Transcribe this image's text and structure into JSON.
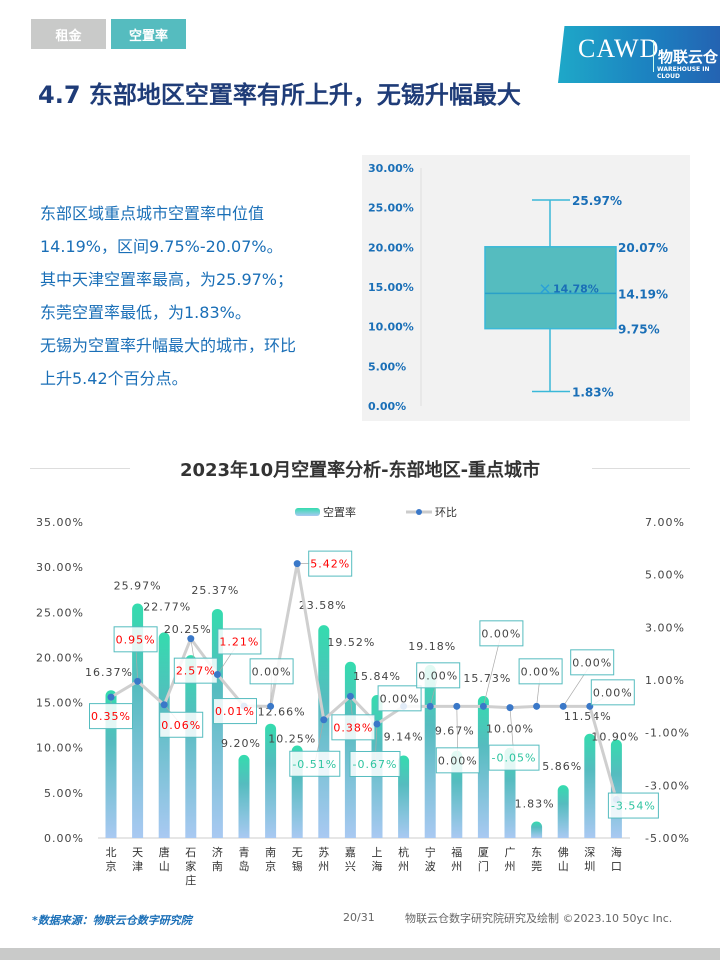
{
  "tabs": [
    {
      "label": "租金"
    },
    {
      "label": "空置率"
    }
  ],
  "logo": {
    "text": "CAWD",
    "cn": "物联云仓",
    "en": "WAREHOUSE IN CLOUD"
  },
  "title": "4.7 东部地区空置率有所上升，无锡升幅最大",
  "description": [
    "东部区域重点城市空置率中位值",
    "14.19%，区间9.75%-20.07%。",
    "其中天津空置率最高，为25.97%；",
    "东莞空置率最低，为1.83%。",
    "无锡为空置率升幅最大的城市，环比",
    "上升5.42个百分点。"
  ],
  "colors": {
    "accent": "#55bcbf",
    "title": "#1f3c78",
    "text_blue": "#1a6fb7",
    "up": "#ff0000",
    "down": "#2ec4a0"
  },
  "chart_data": [
    {
      "type": "box",
      "yticks": [
        "30.00%",
        "25.00%",
        "20.00%",
        "15.00%",
        "10.00%",
        "5.00%",
        "0.00%"
      ],
      "ylim": [
        0,
        30
      ],
      "min": 1.83,
      "q1": 9.75,
      "median": 14.19,
      "q3": 20.07,
      "max": 25.97,
      "mean": 14.78,
      "labels": {
        "max": "25.97%",
        "q3": "20.07%",
        "median": "14.19%",
        "q1": "9.75%",
        "min": "1.83%",
        "mean": "14.78%"
      }
    },
    {
      "type": "bar+line",
      "title": "2023年10月空置率分析-东部地区-重点城市",
      "legend": [
        "空置率",
        "环比"
      ],
      "legend_position": "top",
      "categories": [
        "北京",
        "天津",
        "唐山",
        "石家庄",
        "济南",
        "青岛",
        "南京",
        "无锡",
        "苏州",
        "嘉兴",
        "上海",
        "杭州",
        "宁波",
        "福州",
        "厦门",
        "广州",
        "东莞",
        "佛山",
        "深圳",
        "海口"
      ],
      "series": [
        {
          "name": "空置率",
          "axis": "left",
          "values": [
            16.37,
            25.97,
            22.77,
            20.25,
            25.37,
            9.2,
            12.66,
            10.25,
            23.58,
            19.52,
            15.84,
            9.14,
            19.18,
            9.67,
            15.73,
            10.0,
            1.83,
            5.86,
            11.54,
            10.9
          ],
          "labels": [
            "16.37%",
            "25.97%",
            "22.77%",
            "20.25%",
            "25.37%",
            "9.20%",
            "12.66%",
            "10.25%",
            "23.58%",
            "19.52%",
            "15.84%",
            "9.14%",
            "19.18%",
            "9.67%",
            "15.73%",
            "10.00%",
            "1.83%",
            "5.86%",
            "11.54%",
            "10.90%"
          ]
        },
        {
          "name": "环比",
          "axis": "right",
          "values": [
            0.35,
            0.95,
            0.06,
            2.57,
            1.21,
            0.01,
            0.0,
            5.42,
            -0.51,
            0.38,
            -0.67,
            0.0,
            0.0,
            0.0,
            0.0,
            -0.05,
            0.0,
            0.0,
            0.0,
            -3.54
          ],
          "labels": [
            "0.35%",
            "0.95%",
            "0.06%",
            "2.57%",
            "1.21%",
            "0.01%",
            "0.00%",
            "5.42%",
            "-0.51%",
            "0.38%",
            "-0.67%",
            "0.00%",
            "0.00%",
            "0.00%",
            "0.00%",
            "-0.05%",
            "0.00%",
            "0.00%",
            "0.00%",
            "-3.54%"
          ]
        }
      ],
      "left_ylim": [
        0,
        35
      ],
      "left_ticks": [
        "35.00%",
        "30.00%",
        "25.00%",
        "20.00%",
        "15.00%",
        "10.00%",
        "5.00%",
        "0.00%"
      ],
      "right_ylim": [
        -5,
        7
      ],
      "right_ticks": [
        "7.00%",
        "5.00%",
        "3.00%",
        "1.00%",
        "-1.00%",
        "-3.00%",
        "-5.00%"
      ],
      "grid": false
    }
  ],
  "footer": {
    "source": "*数据来源：物联云仓数字研究院",
    "page": "20/31",
    "credit": "物联云仓数字研究院研究及绘制   ©2023.10 50yc Inc."
  }
}
